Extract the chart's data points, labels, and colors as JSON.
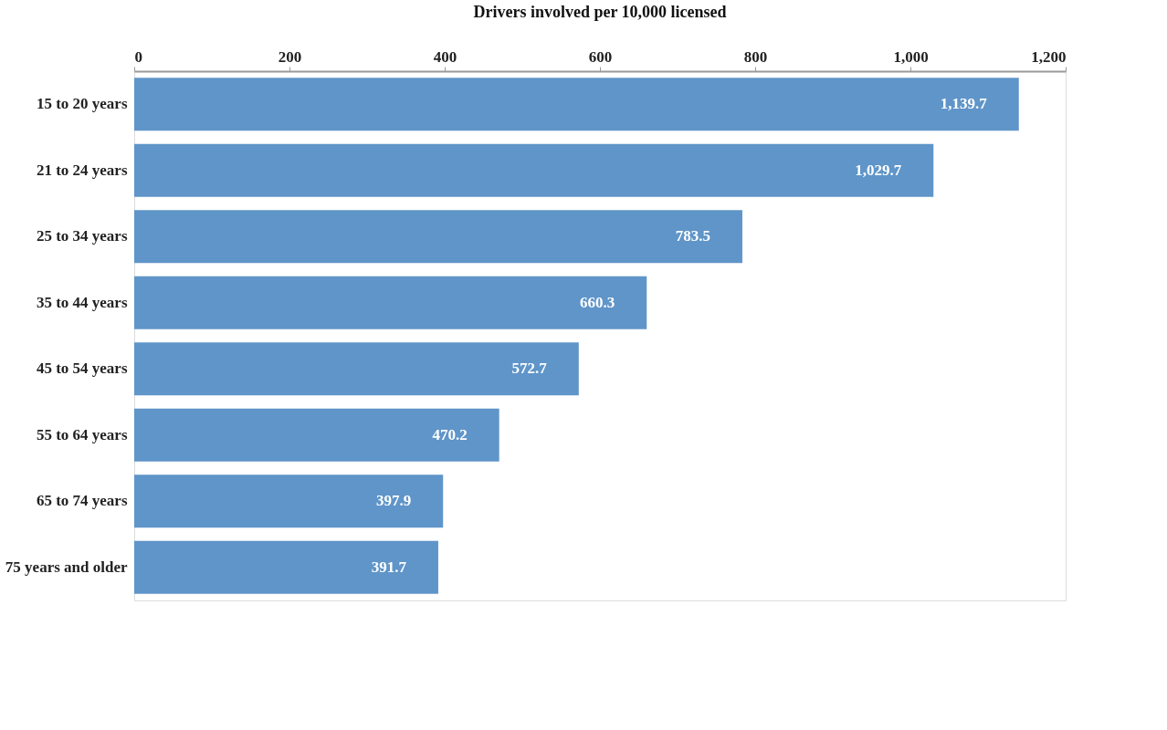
{
  "chart_data": {
    "type": "bar",
    "orientation": "horizontal",
    "title": "Drivers involved per 10,000 licensed",
    "categories": [
      "15 to 20 years",
      "21 to 24 years",
      "25 to 34 years",
      "35 to 44 years",
      "45 to 54 years",
      "55 to 64 years",
      "65 to 74 years",
      "75 years and older"
    ],
    "values": [
      1139.7,
      1029.7,
      783.5,
      660.3,
      572.7,
      470.2,
      397.9,
      391.7
    ],
    "value_labels": [
      "1,139.7",
      "1,029.7",
      "783.5",
      "660.3",
      "572.7",
      "470.2",
      "397.9",
      "391.7"
    ],
    "color": "#5f95c9",
    "xlim": [
      0,
      1200
    ],
    "xticks": [
      0,
      200,
      400,
      600,
      800,
      {
        "value": 1000,
        "label": "1,000"
      },
      {
        "value": 1200,
        "label": "1,200"
      }
    ],
    "grid": false
  }
}
